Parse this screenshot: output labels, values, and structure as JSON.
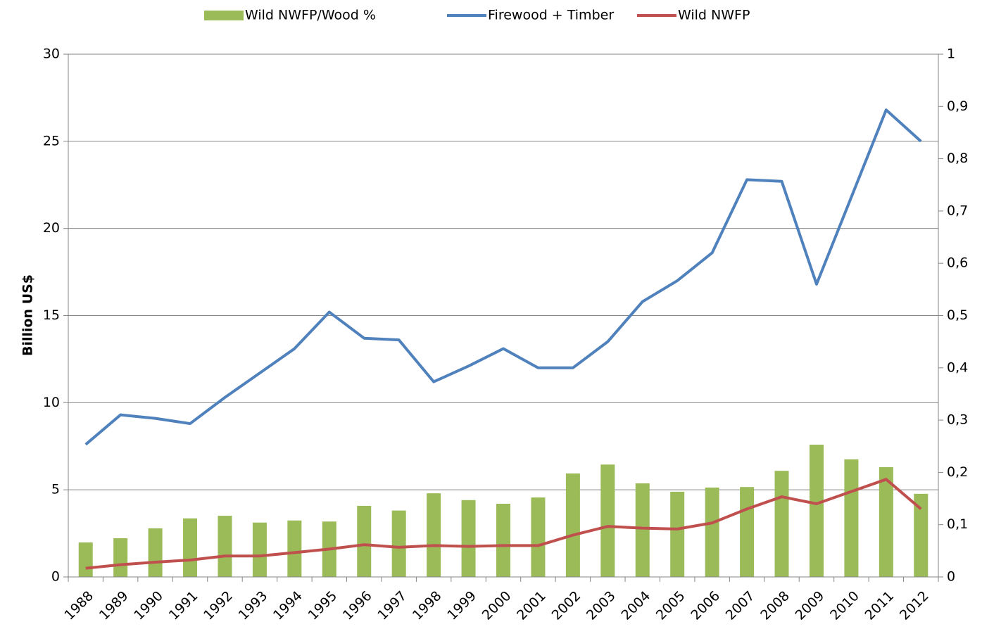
{
  "chart_data": {
    "type": "bar-line",
    "y_label": "Billion US$",
    "categories": [
      "1988",
      "1989",
      "1990",
      "1991",
      "1992",
      "1993",
      "1994",
      "1995",
      "1996",
      "1997",
      "1998",
      "1999",
      "2000",
      "2001",
      "2002",
      "2003",
      "2004",
      "2005",
      "2006",
      "2007",
      "2008",
      "2009",
      "2010",
      "2011",
      "2012"
    ],
    "series": [
      {
        "name": "Wild NWFP/Wood %",
        "type": "bar",
        "axis": "y2",
        "color": "#9bbb59",
        "values": [
          0.066,
          0.074,
          0.093,
          0.112,
          0.117,
          0.104,
          0.108,
          0.106,
          0.136,
          0.127,
          0.16,
          0.147,
          0.14,
          0.152,
          0.198,
          0.215,
          0.179,
          0.163,
          0.171,
          0.172,
          0.203,
          0.253,
          0.225,
          0.21,
          0.159
        ]
      },
      {
        "name": "Firewood + Timber",
        "type": "line",
        "color": "#4f81bd",
        "values": [
          7.6,
          9.3,
          9.1,
          8.8,
          10.3,
          11.7,
          13.1,
          15.2,
          13.7,
          13.6,
          11.2,
          12.1,
          13.1,
          12.0,
          12.0,
          13.5,
          15.8,
          17.0,
          18.6,
          22.8,
          22.7,
          16.8,
          21.8,
          26.8,
          25.0
        ]
      },
      {
        "name": "Wild NWFP",
        "type": "line",
        "color": "#c0504d",
        "values": [
          0.5,
          0.7,
          0.85,
          0.97,
          1.2,
          1.2,
          1.4,
          1.6,
          1.85,
          1.7,
          1.8,
          1.75,
          1.8,
          1.8,
          2.4,
          2.9,
          2.8,
          2.75,
          3.1,
          3.9,
          4.6,
          4.2,
          4.9,
          5.6,
          3.9
        ]
      }
    ],
    "ylim": [
      0,
      30
    ],
    "yticks": [
      0,
      5,
      10,
      15,
      20,
      25,
      30
    ],
    "y2lim": [
      0,
      1
    ],
    "y2ticks": [
      0,
      {
        "value": 0.1,
        "label": "0,1"
      },
      {
        "value": 0.2,
        "label": "0,2"
      },
      {
        "value": 0.3,
        "label": "0,3"
      },
      {
        "value": 0.4,
        "label": "0,4"
      },
      {
        "value": 0.5,
        "label": "0,5"
      },
      {
        "value": 0.6,
        "label": "0,6"
      },
      {
        "value": 0.7,
        "label": "0,7"
      },
      {
        "value": 0.8,
        "label": "0,8"
      },
      {
        "value": 0.9,
        "label": "0,9"
      },
      1
    ],
    "grid": true,
    "legend": "top"
  }
}
